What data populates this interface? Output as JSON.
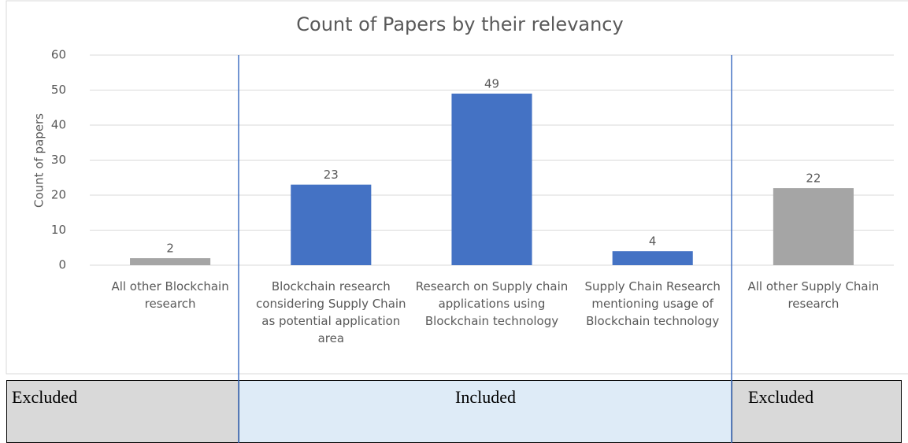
{
  "chart_data": {
    "type": "bar",
    "title": "Count of Papers by their relevancy",
    "y_label": "Count of papers",
    "categories": [
      "All other Blockchain research",
      "Blockchain research considering Supply Chain as potential application area",
      "Research on Supply chain applications using Blockchain technology",
      "Supply Chain Research mentioning usage of Blockchain technology",
      "All other Supply Chain research"
    ],
    "values": [
      2,
      23,
      49,
      4,
      22
    ],
    "colors": [
      "#a5a5a5",
      "#4472c4",
      "#4472c4",
      "#4472c4",
      "#a5a5a5"
    ],
    "ylim": [
      0,
      60
    ],
    "yticks": [
      0,
      10,
      20,
      30,
      40,
      50,
      60
    ],
    "grid": true,
    "annotations": [
      "Excluded",
      "Included",
      "Excluded"
    ]
  }
}
